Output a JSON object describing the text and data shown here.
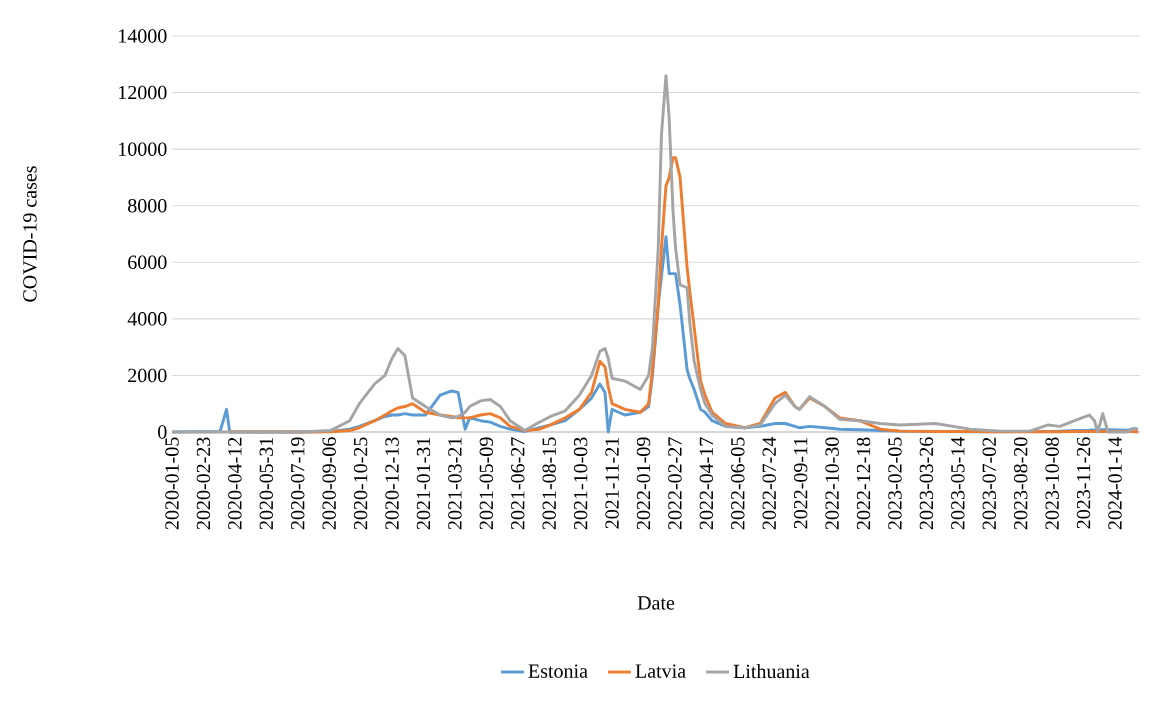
{
  "chart_data": {
    "type": "line",
    "xlabel": "Date",
    "ylabel": "COVID-19 cases",
    "x": [
      "2020-01-05",
      "2020-03-20",
      "2020-03-30",
      "2020-04-04",
      "2020-07-22",
      "2020-09-08",
      "2020-10-08",
      "2020-10-23",
      "2020-11-16",
      "2020-12-02",
      "2020-12-13",
      "2020-12-22",
      "2021-01-02",
      "2021-01-14",
      "2021-02-03",
      "2021-02-26",
      "2021-03-16",
      "2021-03-26",
      "2021-04-06",
      "2021-04-13",
      "2021-04-30",
      "2021-05-15",
      "2021-05-31",
      "2021-06-15",
      "2021-07-08",
      "2021-07-31",
      "2021-08-17",
      "2021-09-09",
      "2021-10-01",
      "2021-10-20",
      "2021-11-02",
      "2021-11-10",
      "2021-11-15",
      "2021-11-21",
      "2021-12-11",
      "2022-01-04",
      "2022-01-17",
      "2022-01-23",
      "2022-02-01",
      "2022-02-06",
      "2022-02-13",
      "2022-02-18",
      "2022-02-24",
      "2022-02-28",
      "2022-03-07",
      "2022-03-18",
      "2022-03-22",
      "2022-03-29",
      "2022-04-08",
      "2022-04-15",
      "2022-04-26",
      "2022-05-17",
      "2022-06-16",
      "2022-07-10",
      "2022-08-02",
      "2022-08-18",
      "2022-09-02",
      "2022-09-09",
      "2022-09-25",
      "2022-10-19",
      "2022-11-11",
      "2022-12-12",
      "2023-01-13",
      "2023-02-13",
      "2023-04-09",
      "2023-06-02",
      "2023-07-19",
      "2023-09-03",
      "2023-10-02",
      "2023-10-20",
      "2023-11-12",
      "2023-12-05",
      "2023-12-13",
      "2023-12-18",
      "2023-12-26",
      "2024-01-03",
      "2024-02-03",
      "2024-02-11",
      "2024-02-19"
    ],
    "series": [
      {
        "name": "Estonia",
        "color": "#5b9bd5",
        "values": [
          0,
          20,
          800,
          0,
          0,
          20,
          100,
          200,
          400,
          550,
          600,
          600,
          650,
          600,
          600,
          1300,
          1450,
          1400,
          100,
          500,
          400,
          350,
          200,
          100,
          20,
          150,
          250,
          400,
          800,
          1200,
          1700,
          1400,
          0,
          800,
          600,
          700,
          900,
          2000,
          4500,
          5500,
          6900,
          5600,
          5600,
          5600,
          4500,
          2200,
          1900,
          1500,
          800,
          700,
          400,
          200,
          150,
          200,
          300,
          300,
          200,
          150,
          200,
          150,
          100,
          80,
          50,
          30,
          20,
          10,
          10,
          20,
          20,
          30,
          50,
          60,
          70,
          70,
          80,
          80,
          60,
          120,
          100
        ]
      },
      {
        "name": "Latvia",
        "color": "#ed7d31",
        "values": [
          null,
          null,
          null,
          10,
          0,
          10,
          50,
          150,
          400,
          600,
          750,
          850,
          900,
          1000,
          700,
          600,
          550,
          500,
          500,
          500,
          600,
          650,
          500,
          200,
          50,
          100,
          250,
          500,
          800,
          1400,
          2500,
          2300,
          1600,
          1000,
          800,
          700,
          1000,
          2200,
          4500,
          6500,
          8700,
          9000,
          9700,
          9700,
          9000,
          5800,
          5000,
          3700,
          1800,
          1300,
          700,
          300,
          150,
          300,
          1200,
          1400,
          900,
          800,
          1200,
          900,
          500,
          400,
          100,
          30,
          20,
          20,
          10,
          10,
          10,
          10,
          20,
          20,
          20,
          20,
          20,
          20,
          20,
          20,
          0
        ]
      },
      {
        "name": "Lithuania",
        "color": "#a5a5a5",
        "values": [
          0,
          0,
          0,
          0,
          0,
          50,
          400,
          1000,
          1700,
          2000,
          2600,
          2950,
          2700,
          1200,
          900,
          600,
          500,
          550,
          700,
          900,
          1100,
          1150,
          900,
          400,
          50,
          350,
          550,
          750,
          1300,
          2000,
          2850,
          2950,
          2600,
          1900,
          1800,
          1500,
          2000,
          3000,
          6500,
          10500,
          12600,
          11100,
          7800,
          6500,
          5200,
          5100,
          3900,
          2500,
          1500,
          1000,
          600,
          200,
          150,
          250,
          1000,
          1300,
          900,
          800,
          1250,
          900,
          450,
          400,
          300,
          250,
          300,
          100,
          30,
          30,
          250,
          200,
          400,
          600,
          400,
          0,
          650,
          0,
          0,
          120,
          100
        ]
      }
    ],
    "xlim": [
      "2020-01-05",
      "2024-02-22"
    ],
    "xticks": [
      "2020-01-05",
      "2020-02-23",
      "2020-04-12",
      "2020-05-31",
      "2020-07-19",
      "2020-09-06",
      "2020-10-25",
      "2020-12-13",
      "2021-01-31",
      "2021-03-21",
      "2021-05-09",
      "2021-06-27",
      "2021-08-15",
      "2021-10-03",
      "2021-11-21",
      "2022-01-09",
      "2022-02-27",
      "2022-04-17",
      "2022-06-05",
      "2022-07-24",
      "2022-09-11",
      "2022-10-30",
      "2022-12-18",
      "2023-02-05",
      "2023-03-26",
      "2023-05-14",
      "2023-07-02",
      "2023-08-20",
      "2023-10-08",
      "2023-11-26",
      "2024-01-14"
    ],
    "ylim": [
      0,
      14000
    ],
    "yticks": [
      0,
      2000,
      4000,
      6000,
      8000,
      10000,
      12000,
      14000
    ],
    "grid": "y",
    "legend": "bottom",
    "marker": "none",
    "line_style": "solid"
  }
}
